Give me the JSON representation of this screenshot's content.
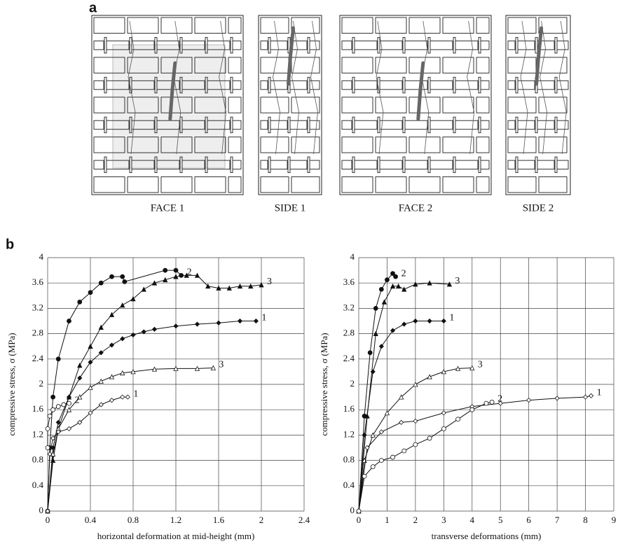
{
  "panels": {
    "a": "a",
    "b": "b"
  },
  "walls": [
    {
      "label": "FACE 1"
    },
    {
      "label": "SIDE 1"
    },
    {
      "label": "FACE 2"
    },
    {
      "label": "SIDE 2"
    }
  ],
  "chart_data": [
    {
      "type": "line",
      "xlabel": "horizontal deformation at mid-height (mm)",
      "ylabel": "compressive stress, σ (MPa)",
      "xlim": [
        0,
        2.4
      ],
      "xticks": [
        0,
        0.4,
        0.8,
        1.2,
        1.6,
        2,
        2.4
      ],
      "ylim": [
        0,
        4
      ],
      "yticks": [
        0,
        0.4,
        0.8,
        1.2,
        1.6,
        2,
        2.4,
        2.8,
        3.2,
        3.6,
        4
      ],
      "grid": true,
      "series": [
        {
          "name": "2",
          "color": "#111111",
          "marker": "circle",
          "filled": true,
          "x": [
            0,
            0.02,
            0.05,
            0.1,
            0.2,
            0.3,
            0.4,
            0.5,
            0.6,
            0.7,
            0.72,
            1.1,
            1.2,
            1.25
          ],
          "values": [
            0,
            1.0,
            1.8,
            2.4,
            3.0,
            3.3,
            3.45,
            3.6,
            3.7,
            3.7,
            3.62,
            3.8,
            3.8,
            3.72
          ]
        },
        {
          "name": "3",
          "color": "#111111",
          "marker": "triangle",
          "filled": true,
          "x": [
            0,
            0.05,
            0.1,
            0.2,
            0.3,
            0.4,
            0.5,
            0.6,
            0.7,
            0.8,
            0.9,
            1.0,
            1.1,
            1.2,
            1.3,
            1.4,
            1.5,
            1.6,
            1.7,
            1.8,
            1.9,
            2.0
          ],
          "values": [
            0,
            0.8,
            1.3,
            1.8,
            2.3,
            2.6,
            2.9,
            3.1,
            3.25,
            3.35,
            3.5,
            3.6,
            3.65,
            3.7,
            3.72,
            3.72,
            3.55,
            3.52,
            3.52,
            3.55,
            3.55,
            3.57
          ]
        },
        {
          "name": "1",
          "color": "#111111",
          "marker": "diamond",
          "filled": true,
          "x": [
            0,
            0.05,
            0.1,
            0.2,
            0.3,
            0.4,
            0.5,
            0.6,
            0.7,
            0.8,
            0.9,
            1.0,
            1.2,
            1.4,
            1.6,
            1.8,
            1.95
          ],
          "values": [
            0,
            1.0,
            1.4,
            1.8,
            2.1,
            2.35,
            2.5,
            2.62,
            2.72,
            2.78,
            2.83,
            2.87,
            2.92,
            2.95,
            2.97,
            3.0,
            3.0
          ]
        },
        {
          "name": "3",
          "color": "#111111",
          "marker": "triangle",
          "filled": false,
          "x": [
            0,
            0.05,
            0.1,
            0.2,
            0.3,
            0.4,
            0.5,
            0.6,
            0.7,
            0.8,
            1.0,
            1.2,
            1.4,
            1.55
          ],
          "values": [
            0,
            0.9,
            1.3,
            1.6,
            1.8,
            1.95,
            2.05,
            2.12,
            2.18,
            2.2,
            2.24,
            2.25,
            2.25,
            2.26
          ]
        },
        {
          "name": "1",
          "color": "#111111",
          "marker": "diamond",
          "filled": false,
          "x": [
            0,
            0.02,
            0.05,
            0.1,
            0.2,
            0.3,
            0.4,
            0.5,
            0.6,
            0.7,
            0.75
          ],
          "values": [
            0,
            0.9,
            1.15,
            1.25,
            1.3,
            1.4,
            1.55,
            1.68,
            1.75,
            1.8,
            1.8
          ]
        },
        {
          "name": "2",
          "color": "#111111",
          "marker": "circle",
          "filled": false,
          "x": [
            0,
            0,
            0.02,
            0.05,
            0.1,
            0.15,
            0.2
          ],
          "values": [
            1.0,
            1.3,
            1.5,
            1.6,
            1.65,
            1.68,
            1.7
          ]
        }
      ]
    },
    {
      "type": "line",
      "xlabel": "transverse deformations (mm)",
      "ylabel": "compressive stress, σ (MPa)",
      "xlim": [
        0,
        9
      ],
      "xticks": [
        0,
        1,
        2,
        3,
        4,
        5,
        6,
        7,
        8,
        9
      ],
      "ylim": [
        0,
        4
      ],
      "yticks": [
        0,
        0.4,
        0.8,
        1.2,
        1.6,
        2,
        2.4,
        2.8,
        3.2,
        3.6,
        4
      ],
      "grid": true,
      "series": [
        {
          "name": "2",
          "color": "#111111",
          "marker": "circle",
          "filled": true,
          "x": [
            0,
            0.2,
            0.4,
            0.6,
            0.8,
            1.0,
            1.2,
            1.3
          ],
          "values": [
            0,
            1.5,
            2.5,
            3.2,
            3.5,
            3.65,
            3.75,
            3.7
          ]
        },
        {
          "name": "3",
          "color": "#111111",
          "marker": "triangle",
          "filled": true,
          "x": [
            0,
            0.3,
            0.6,
            0.9,
            1.2,
            1.4,
            1.6,
            2.0,
            2.5,
            3.2
          ],
          "values": [
            0,
            1.5,
            2.8,
            3.3,
            3.55,
            3.55,
            3.5,
            3.58,
            3.6,
            3.58
          ]
        },
        {
          "name": "1",
          "color": "#111111",
          "marker": "diamond",
          "filled": true,
          "x": [
            0,
            0.2,
            0.5,
            0.8,
            1.2,
            1.6,
            2.0,
            2.5,
            3.0
          ],
          "values": [
            0,
            1.2,
            2.2,
            2.6,
            2.85,
            2.95,
            3.0,
            3.0,
            3.0
          ]
        },
        {
          "name": "3",
          "color": "#111111",
          "marker": "triangle",
          "filled": false,
          "x": [
            0,
            0.2,
            0.5,
            1.0,
            1.5,
            2.0,
            2.5,
            3.0,
            3.5,
            4.0
          ],
          "values": [
            0,
            0.8,
            1.2,
            1.55,
            1.8,
            2.0,
            2.12,
            2.2,
            2.25,
            2.26
          ]
        },
        {
          "name": "1",
          "color": "#111111",
          "marker": "diamond",
          "filled": false,
          "x": [
            0,
            0.3,
            0.8,
            1.5,
            2.0,
            3.0,
            4.0,
            5.0,
            6.0,
            7.0,
            8.0,
            8.2
          ],
          "values": [
            0,
            1.0,
            1.25,
            1.4,
            1.42,
            1.55,
            1.65,
            1.7,
            1.75,
            1.78,
            1.8,
            1.82
          ]
        },
        {
          "name": "2",
          "color": "#111111",
          "marker": "circle",
          "filled": false,
          "x": [
            0,
            0.2,
            0.5,
            0.8,
            1.2,
            1.6,
            2.0,
            2.5,
            3.0,
            3.5,
            4.0,
            4.5,
            4.7
          ],
          "values": [
            0,
            0.55,
            0.7,
            0.8,
            0.85,
            0.95,
            1.05,
            1.15,
            1.3,
            1.45,
            1.6,
            1.7,
            1.72
          ]
        }
      ]
    }
  ]
}
